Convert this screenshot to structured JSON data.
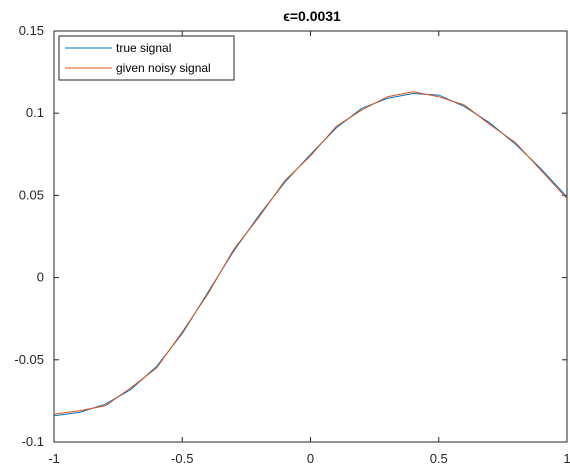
{
  "chart_data": {
    "type": "line",
    "title": "ϵ=0.0031",
    "xlabel": "",
    "ylabel": "",
    "xlim": [
      -1,
      1
    ],
    "ylim": [
      -0.1,
      0.15
    ],
    "xticks": [
      -1,
      -0.5,
      0,
      0.5,
      1
    ],
    "xtick_labels": [
      "-1",
      "-0.5",
      "0",
      "0.5",
      "1"
    ],
    "yticks": [
      -0.1,
      -0.05,
      0,
      0.05,
      0.1,
      0.15
    ],
    "ytick_labels": [
      "-0.1",
      "-0.05",
      "0",
      "0.05",
      "0.1",
      "0.15"
    ],
    "grid": false,
    "legend_position": "top-left",
    "x": [
      -1.0,
      -0.9,
      -0.8,
      -0.7,
      -0.6,
      -0.5,
      -0.4,
      -0.3,
      -0.2,
      -0.1,
      0.0,
      0.1,
      0.2,
      0.3,
      0.4,
      0.5,
      0.6,
      0.7,
      0.8,
      0.9,
      1.0
    ],
    "series": [
      {
        "name": "true signal",
        "color": "#0072BD",
        "values": [
          -0.084,
          -0.082,
          -0.077,
          -0.068,
          -0.054,
          -0.034,
          -0.009,
          0.016,
          0.038,
          0.058,
          0.075,
          0.091,
          0.103,
          0.109,
          0.112,
          0.111,
          0.104,
          0.094,
          0.081,
          0.066,
          0.049
        ]
      },
      {
        "name": "given noisy signal",
        "color": "#D95319",
        "values": [
          -0.083,
          -0.081,
          -0.078,
          -0.067,
          -0.055,
          -0.033,
          -0.01,
          0.017,
          0.037,
          0.059,
          0.074,
          0.092,
          0.102,
          0.11,
          0.113,
          0.11,
          0.105,
          0.093,
          0.082,
          0.065,
          0.048
        ]
      }
    ]
  }
}
